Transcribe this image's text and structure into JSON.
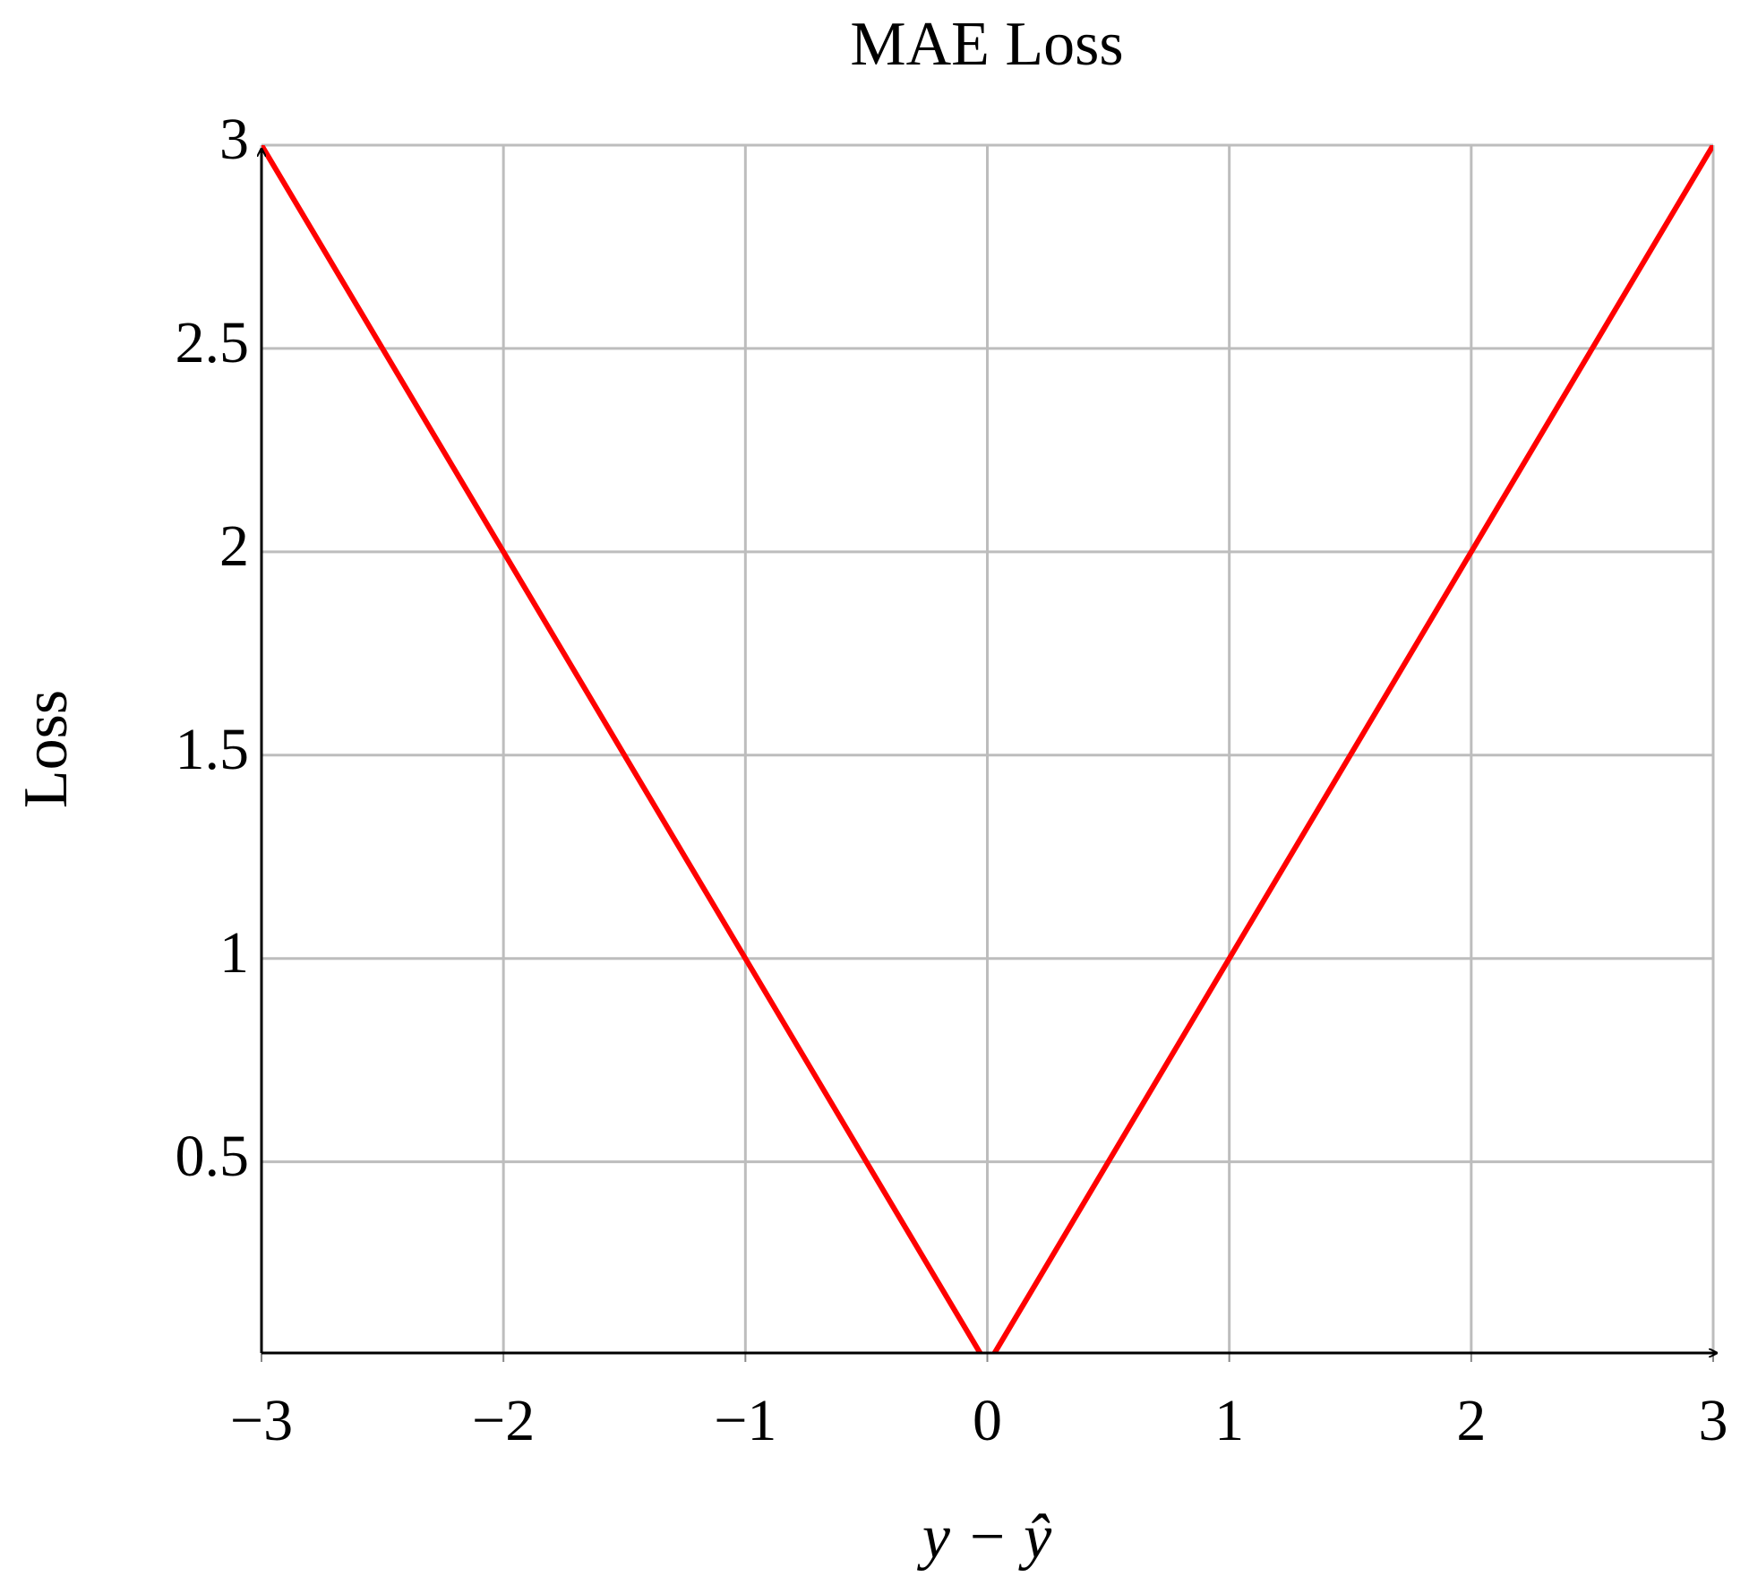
{
  "chart_data": {
    "type": "line",
    "title": "MAE Loss",
    "x_label": "y − ŷ",
    "y_label": "Loss",
    "x": [
      -3,
      0,
      3
    ],
    "series": [
      {
        "name": "MAE",
        "color": "#ff0000",
        "values": [
          3,
          0,
          3
        ]
      }
    ],
    "xlim": [
      -3,
      3
    ],
    "ylim": [
      0.03,
      3
    ],
    "xticks": [
      {
        "value": -3,
        "label": "−3"
      },
      {
        "value": -2,
        "label": "−2"
      },
      {
        "value": -1,
        "label": "−1"
      },
      0,
      1,
      2,
      3
    ],
    "yticks": [
      0.5,
      1,
      1.5,
      2,
      2.5,
      3
    ],
    "grid": true
  }
}
